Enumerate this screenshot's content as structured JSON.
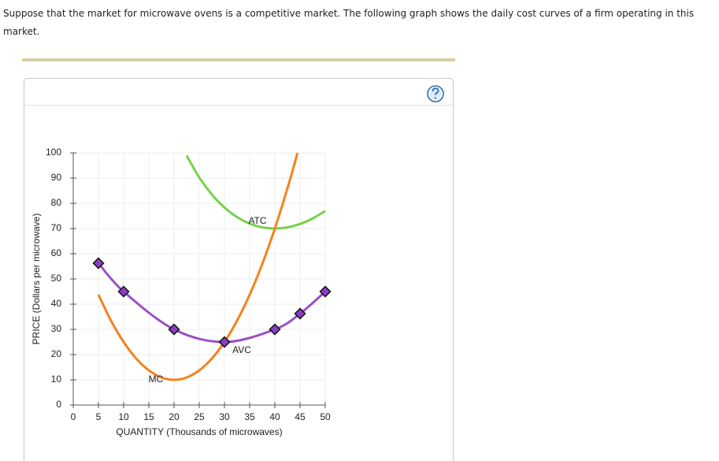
{
  "prompt": "Suppose that the market for microwave ovens is a competitive market. The following graph shows the daily cost curves of a firm operating in this market.",
  "chart_data": {
    "type": "line",
    "x_label": "QUANTITY (Thousands of microwaves)",
    "y_label": "PRICE (Dollars per microwave)",
    "xlim": [
      0,
      50
    ],
    "ylim": [
      0,
      100
    ],
    "xticks": [
      0,
      5,
      10,
      15,
      20,
      25,
      30,
      35,
      40,
      45,
      50
    ],
    "yticks": [
      0,
      10,
      20,
      30,
      40,
      50,
      60,
      70,
      80,
      90,
      100
    ],
    "grid": true,
    "series": [
      {
        "name": "ATC",
        "color": "#78d14a",
        "markers": false,
        "x": [
          22.5,
          25,
          27.5,
          30,
          32.5,
          35,
          37.5,
          40,
          42.5,
          45,
          47.5,
          50
        ],
        "values": [
          98.92,
          90.25,
          83.49,
          78.33,
          74.54,
          71.96,
          70.48,
          70,
          70.46,
          71.81,
          73.99,
          77
        ]
      },
      {
        "name": "MC",
        "color": "#f5821f",
        "markers": false,
        "x": [
          5,
          7.5,
          10,
          12.5,
          15,
          17.5,
          20,
          22.5,
          25,
          27.5,
          30,
          32.5,
          35,
          37.5,
          40,
          42.5,
          44.5
        ],
        "values": [
          43.75,
          33.44,
          25,
          18.44,
          13.75,
          10.94,
          10,
          10.94,
          13.75,
          18.44,
          25,
          33.44,
          43.75,
          55.94,
          70,
          85.94,
          100
        ]
      },
      {
        "name": "AVC",
        "color": "#9b4fc6",
        "markers": true,
        "x": [
          5,
          10,
          20,
          30,
          40,
          45,
          50
        ],
        "values": [
          56.25,
          45,
          30,
          25,
          30,
          36.25,
          45
        ]
      }
    ]
  }
}
